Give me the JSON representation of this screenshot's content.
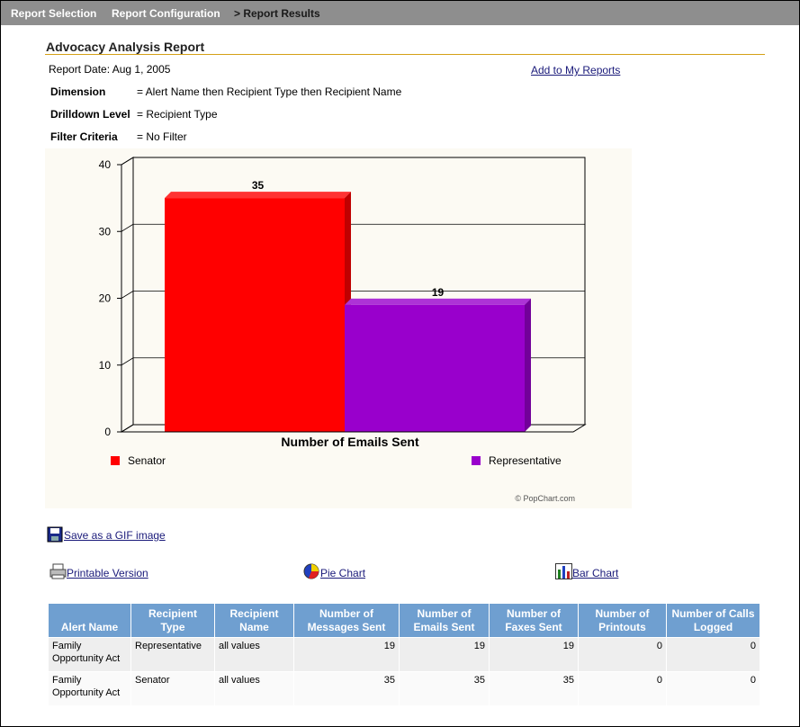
{
  "nav": [
    "Report Selection",
    "Report Configuration",
    "> Report Results"
  ],
  "header": {
    "title": "Advocacy Analysis Report",
    "report_date": "Report Date: Aug 1, 2005",
    "add_link": "Add to My Reports"
  },
  "criteria": [
    {
      "label": "Dimension",
      "value": "= Alert Name then Recipient Type then Recipient Name"
    },
    {
      "label": "Drilldown Level",
      "value": "= Recipient Type"
    },
    {
      "label": "Filter Criteria",
      "value": "= No Filter"
    }
  ],
  "chart_data": {
    "type": "bar",
    "categories": [
      "Number of Emails Sent"
    ],
    "series": [
      {
        "name": "Senator",
        "color": "#ff0000",
        "values": [
          35
        ]
      },
      {
        "name": "Representative",
        "color": "#9900cc",
        "values": [
          19
        ]
      }
    ],
    "ylim": [
      0,
      40
    ],
    "yticks": [
      0,
      10,
      20,
      30,
      40
    ],
    "grid": true,
    "credit": "© PopChart.com"
  },
  "links": {
    "save_gif": "Save as a GIF image",
    "printable": "Printable Version",
    "pie": "Pie Chart",
    "bar": "Bar Chart"
  },
  "table": {
    "columns": [
      "Alert Name",
      "Recipient Type",
      "Recipient Name",
      "Number of Messages Sent",
      "Number of Emails Sent",
      "Number of Faxes Sent",
      "Number of Printouts",
      "Number of Calls Logged"
    ],
    "rows": [
      [
        "Family Opportunity Act",
        "Representative",
        "all values",
        19,
        19,
        19,
        0,
        0
      ],
      [
        "Family Opportunity Act",
        "Senator",
        "all values",
        35,
        35,
        35,
        0,
        0
      ]
    ]
  }
}
